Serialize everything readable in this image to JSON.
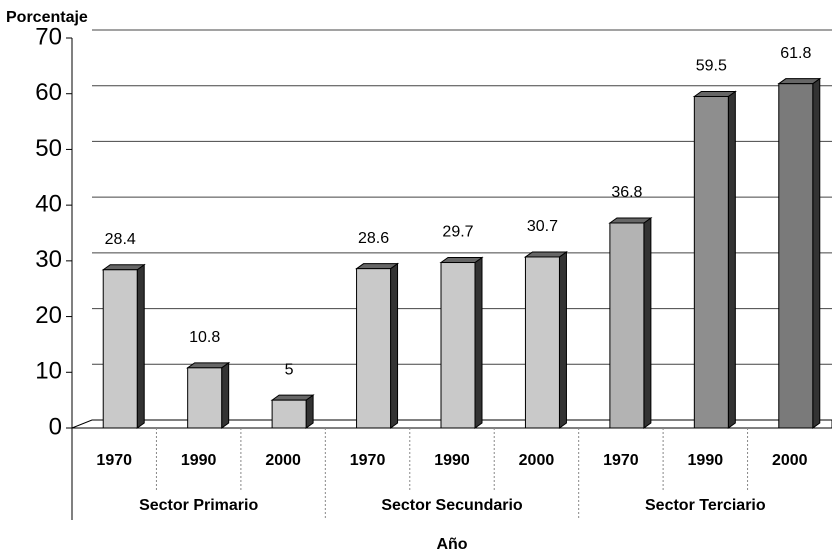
{
  "chart_data": {
    "type": "bar",
    "y_label": "Porcentaje",
    "x_label": "Año",
    "groups": [
      {
        "name": "Sector Primario",
        "categories": [
          "1970",
          "1990",
          "2000"
        ],
        "values": [
          28.4,
          10.8,
          5
        ],
        "colors": [
          "#c9c9c9",
          "#c9c9c9",
          "#c9c9c9"
        ]
      },
      {
        "name": "Sector Secundario",
        "categories": [
          "1970",
          "1990",
          "2000"
        ],
        "values": [
          28.6,
          29.7,
          30.7
        ],
        "colors": [
          "#c9c9c9",
          "#c9c9c9",
          "#c9c9c9"
        ]
      },
      {
        "name": "Sector Terciario",
        "categories": [
          "1970",
          "1990",
          "2000"
        ],
        "values": [
          36.8,
          59.5,
          61.8
        ],
        "colors": [
          "#b3b3b3",
          "#8e8e8e",
          "#7a7a7a"
        ]
      }
    ],
    "ylim": [
      0,
      70
    ],
    "yticks": [
      0,
      10,
      20,
      30,
      40,
      50,
      60,
      70
    ],
    "grid": true
  }
}
